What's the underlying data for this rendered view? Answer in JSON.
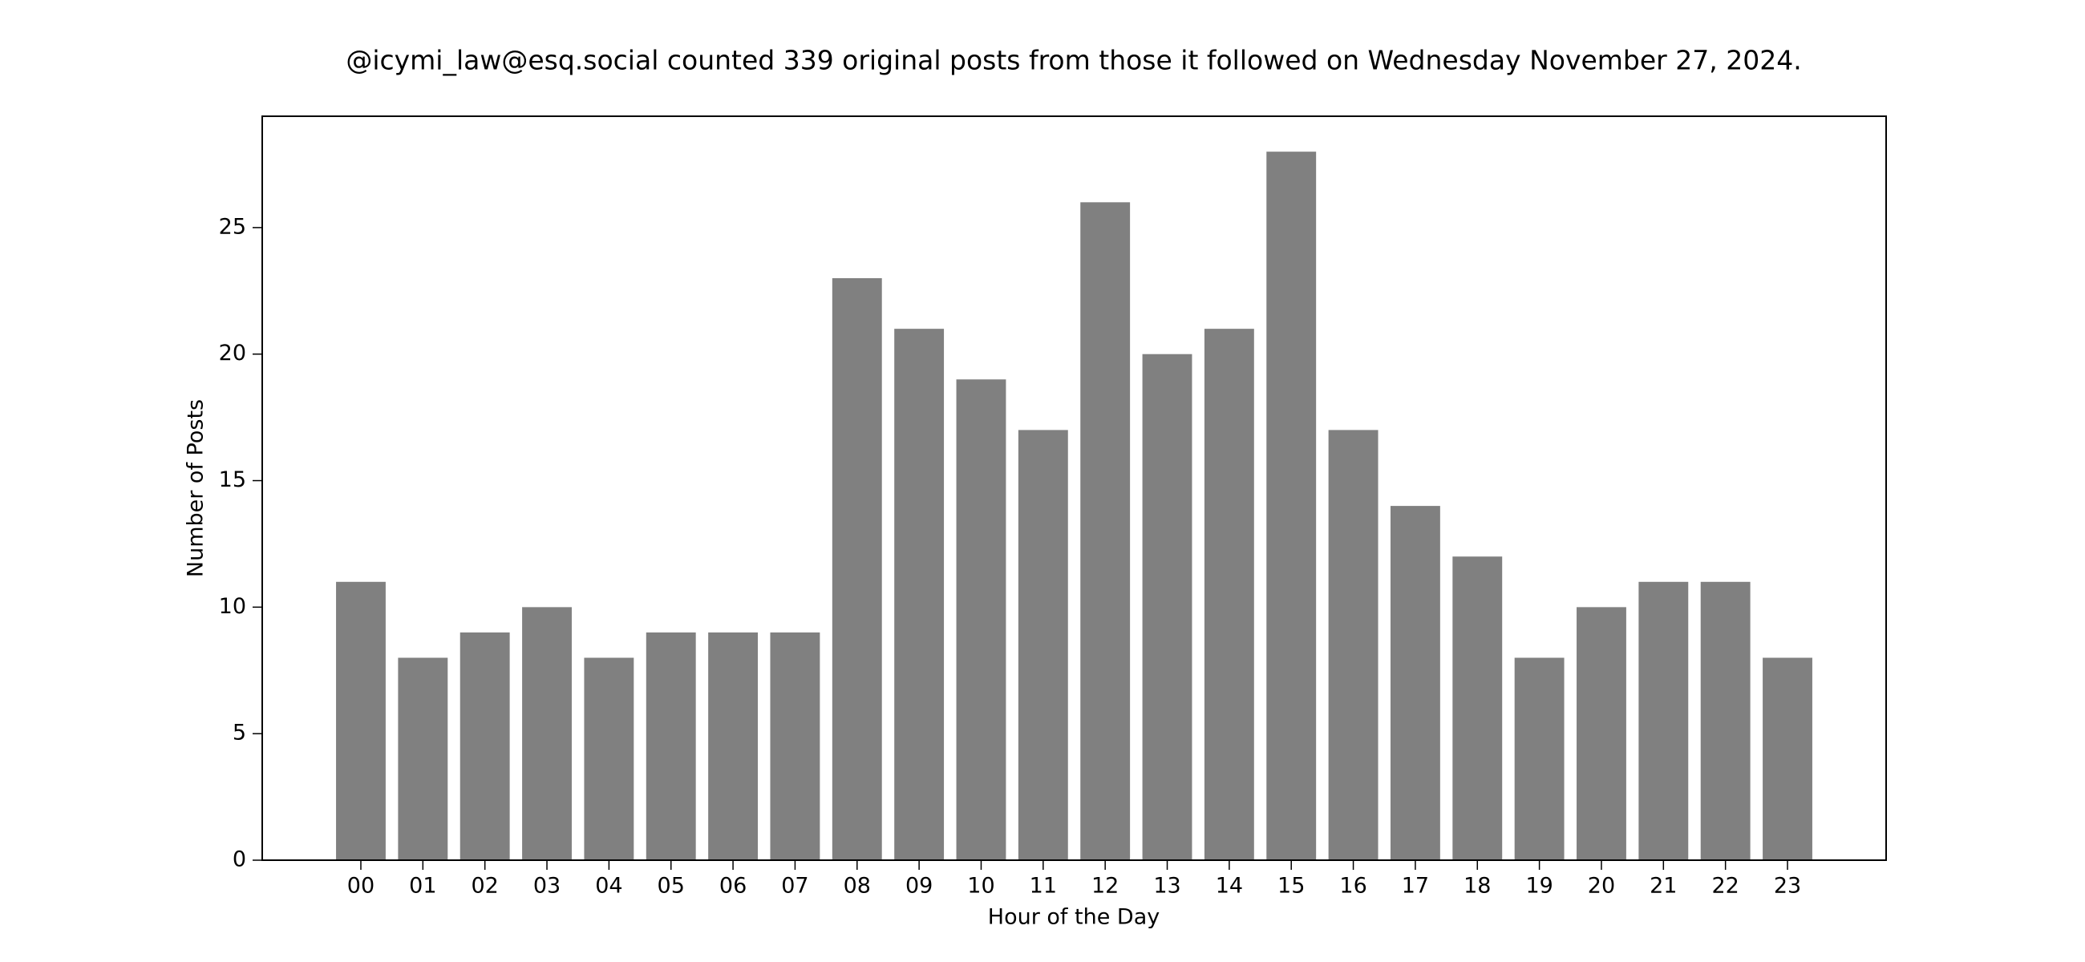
{
  "chart_data": {
    "type": "bar",
    "title": "@icymi_law@esq.social counted 339 original posts from those it followed on Wednesday November 27, 2024.",
    "xlabel": "Hour of the Day",
    "ylabel": "Number of Posts",
    "categories": [
      "00",
      "01",
      "02",
      "03",
      "04",
      "05",
      "06",
      "07",
      "08",
      "09",
      "10",
      "11",
      "12",
      "13",
      "14",
      "15",
      "16",
      "17",
      "18",
      "19",
      "20",
      "21",
      "22",
      "23"
    ],
    "values": [
      11,
      8,
      9,
      10,
      8,
      9,
      9,
      9,
      23,
      21,
      19,
      17,
      26,
      20,
      21,
      28,
      17,
      14,
      12,
      8,
      10,
      11,
      11,
      8
    ],
    "color": "#808080",
    "ylim": [
      0,
      29.4
    ],
    "yticks": [
      0,
      5,
      10,
      15,
      20,
      25
    ],
    "grid": false
  }
}
